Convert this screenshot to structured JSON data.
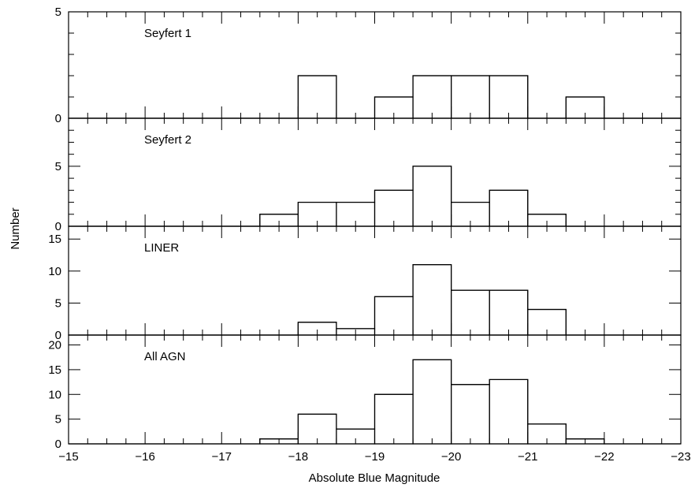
{
  "chart_data": {
    "type": "histogram",
    "xlabel": "Absolute Blue Magnitude",
    "ylabel": "Number",
    "xlim": [
      -15,
      -23
    ],
    "x_ticks": [
      -15,
      -16,
      -17,
      -18,
      -19,
      -20,
      -21,
      -22,
      -23
    ],
    "x_tick_labels": [
      "−15",
      "−16",
      "−17",
      "−18",
      "−19",
      "−20",
      "−21",
      "−22",
      "−23"
    ],
    "bin_edges": [
      -15,
      -15.5,
      -16,
      -16.5,
      -17,
      -17.5,
      -18,
      -18.5,
      -19,
      -19.5,
      -20,
      -20.5,
      -21,
      -21.5,
      -22,
      -22.5,
      -23
    ],
    "panels": [
      {
        "name": "Seyfert 1",
        "ylim": [
          0,
          5
        ],
        "y_tick_labels": [
          "0",
          "5"
        ],
        "counts": [
          0,
          0,
          0,
          0,
          0,
          0,
          2,
          0,
          1,
          2,
          2,
          2,
          0,
          1,
          0,
          0
        ]
      },
      {
        "name": "Seyfert 2",
        "ylim": [
          0,
          9
        ],
        "y_tick_labels": [
          "0",
          "5"
        ],
        "counts": [
          0,
          0,
          0,
          0,
          0,
          1,
          2,
          2,
          3,
          5,
          2,
          3,
          1,
          0,
          0,
          0
        ]
      },
      {
        "name": "LINER",
        "ylim": [
          0,
          17
        ],
        "y_tick_labels": [
          "0",
          "5",
          "10",
          "15"
        ],
        "counts": [
          0,
          0,
          0,
          0,
          0,
          0,
          2,
          1,
          6,
          11,
          7,
          7,
          4,
          0,
          0,
          0
        ]
      },
      {
        "name": "All AGN",
        "ylim": [
          0,
          22
        ],
        "y_tick_labels": [
          "0",
          "5",
          "10",
          "15",
          "20"
        ],
        "counts": [
          0,
          0,
          0,
          0,
          0,
          1,
          6,
          3,
          10,
          17,
          12,
          13,
          4,
          1,
          0,
          0
        ]
      }
    ]
  }
}
